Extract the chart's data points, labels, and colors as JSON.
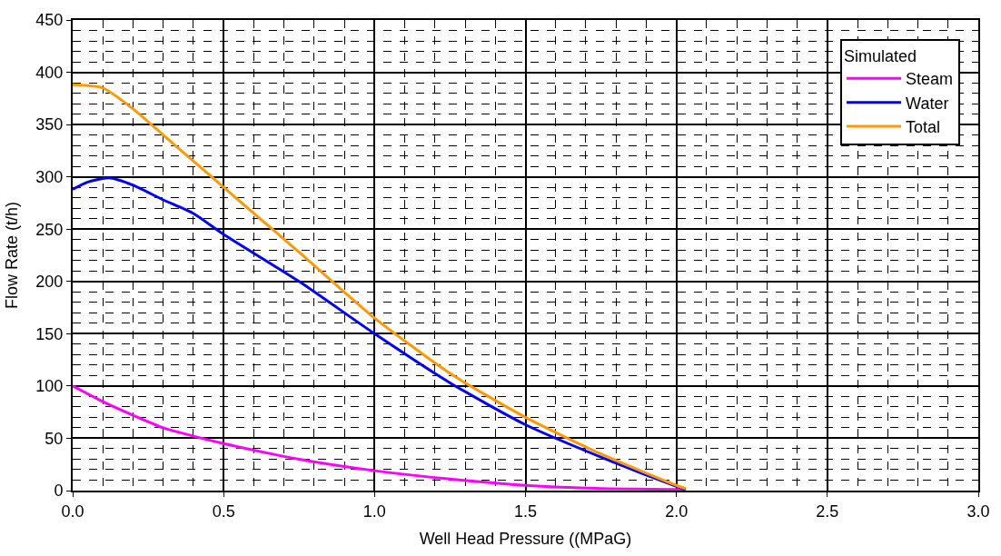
{
  "chart_data": {
    "type": "line",
    "xlabel": "Well Head Pressure ((MPaG)",
    "ylabel": "Flow Rate (t/h)",
    "legend_title": "Simulated",
    "legend": "top right",
    "grid": true,
    "marker": "none",
    "line_style": "solid",
    "xlim": [
      0,
      3
    ],
    "xticks": [
      {
        "value": 0,
        "label": "0.0"
      },
      0.5,
      {
        "value": 1,
        "label": "1.0"
      },
      1.5,
      {
        "value": 2,
        "label": "2.0"
      },
      2.5,
      {
        "value": 3,
        "label": "3.0"
      }
    ],
    "ylim": [
      0,
      450
    ],
    "yticks": [
      0,
      50,
      100,
      150,
      200,
      250,
      300,
      350,
      400,
      450
    ],
    "series": [
      {
        "name": "Steam",
        "color": "#ff00ff",
        "x": [
          0,
          0.1,
          0.2,
          0.3,
          0.4,
          0.5,
          0.75,
          1.0,
          1.25,
          1.5,
          1.75,
          2.0,
          2.03
        ],
        "values": [
          100,
          85,
          72,
          60,
          52,
          45,
          30,
          19,
          11,
          5,
          2,
          1,
          0
        ]
      },
      {
        "name": "Water",
        "color": "#0000ff",
        "x": [
          0,
          0.05,
          0.12,
          0.2,
          0.3,
          0.4,
          0.5,
          0.75,
          1.0,
          1.25,
          1.5,
          1.75,
          2.0,
          2.03
        ],
        "values": [
          288,
          295,
          299,
          292,
          278,
          265,
          245,
          200,
          150,
          103,
          63,
          32,
          4,
          1
        ]
      },
      {
        "name": "Total",
        "color": "#ff9900",
        "x": [
          0,
          0.1,
          0.2,
          0.3,
          0.4,
          0.5,
          0.75,
          1.0,
          1.25,
          1.5,
          1.75,
          2.0,
          2.03
        ],
        "values": [
          388,
          385,
          365,
          340,
          315,
          290,
          228,
          165,
          112,
          70,
          35,
          5,
          2
        ]
      }
    ]
  }
}
